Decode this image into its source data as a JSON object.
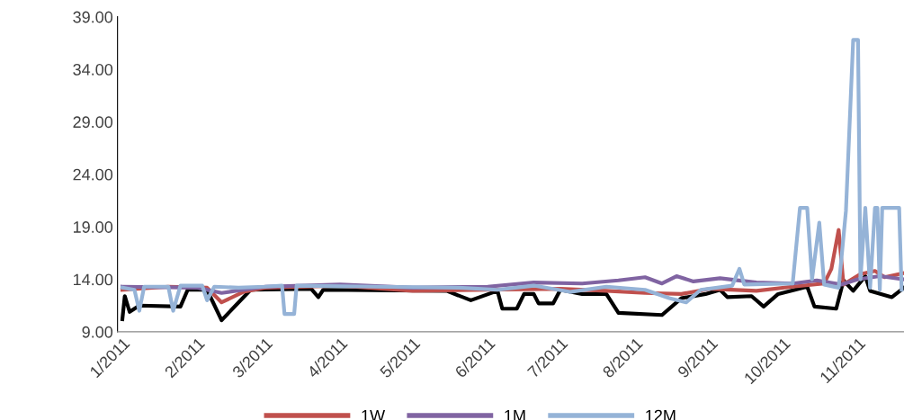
{
  "chart_data": {
    "type": "line",
    "xlim": [
      "2010-12-30",
      "2011-11-20"
    ],
    "xticks": [
      {
        "value": "2011-01-01",
        "label": "1/2011"
      },
      {
        "value": "2011-02-01",
        "label": "2/2011"
      },
      {
        "value": "2011-03-01",
        "label": "3/2011"
      },
      {
        "value": "2011-04-01",
        "label": "4/2011"
      },
      {
        "value": "2011-05-01",
        "label": "5/2011"
      },
      {
        "value": "2011-06-01",
        "label": "6/2011"
      },
      {
        "value": "2011-07-01",
        "label": "7/2011"
      },
      {
        "value": "2011-08-01",
        "label": "8/2011"
      },
      {
        "value": "2011-09-01",
        "label": "9/2011"
      },
      {
        "value": "2011-10-01",
        "label": "10/2011"
      },
      {
        "value": "2011-11-01",
        "label": "11/2011"
      }
    ],
    "ylim": [
      9,
      39
    ],
    "yticks": [
      {
        "value": 9,
        "label": "9.00"
      },
      {
        "value": 14,
        "label": "14.00"
      },
      {
        "value": 19,
        "label": "19.00"
      },
      {
        "value": 24,
        "label": "24.00"
      },
      {
        "value": 29,
        "label": "29.00"
      },
      {
        "value": 34,
        "label": "34.00"
      },
      {
        "value": 39,
        "label": "39.00"
      }
    ],
    "grid": false,
    "legend": "bottom",
    "marker": "none",
    "line_style": "solid",
    "series": [
      {
        "color": "#000000",
        "x": [
          "2011-01-01",
          "2011-01-02",
          "2011-01-04",
          "2011-01-08",
          "2011-01-25",
          "2011-01-28",
          "2011-02-05",
          "2011-02-11",
          "2011-02-23",
          "2011-03-20",
          "2011-03-23",
          "2011-03-25",
          "2011-05-15",
          "2011-05-25",
          "2011-06-05",
          "2011-06-07",
          "2011-06-13",
          "2011-06-16",
          "2011-06-20",
          "2011-06-22",
          "2011-06-28",
          "2011-07-01",
          "2011-07-10",
          "2011-07-20",
          "2011-07-25",
          "2011-08-12",
          "2011-08-20",
          "2011-08-30",
          "2011-09-05",
          "2011-09-08",
          "2011-09-18",
          "2011-09-23",
          "2011-09-29",
          "2011-10-11",
          "2011-10-14",
          "2011-10-23",
          "2011-10-26",
          "2011-10-30",
          "2011-11-04",
          "2011-11-06",
          "2011-11-15",
          "2011-11-20"
        ],
        "values": [
          10.2,
          12.4,
          10.9,
          11.5,
          11.4,
          13.0,
          13.0,
          10.1,
          13.0,
          13.1,
          12.3,
          13.0,
          12.9,
          12.0,
          12.9,
          11.2,
          11.2,
          12.6,
          12.6,
          11.7,
          11.7,
          13.0,
          12.6,
          12.6,
          10.8,
          10.6,
          12.2,
          12.6,
          13.0,
          12.3,
          12.4,
          11.4,
          12.6,
          13.3,
          11.4,
          11.2,
          13.9,
          12.9,
          14.3,
          12.9,
          12.3,
          13.2
        ]
      },
      {
        "name": "1W",
        "color": "#c0504d",
        "x": [
          "2011-01-01",
          "2011-01-20",
          "2011-02-05",
          "2011-02-11",
          "2011-02-20",
          "2011-03-01",
          "2011-04-01",
          "2011-05-01",
          "2011-06-01",
          "2011-07-01",
          "2011-07-20",
          "2011-08-05",
          "2011-08-20",
          "2011-09-01",
          "2011-09-20",
          "2011-10-05",
          "2011-10-18",
          "2011-10-21",
          "2011-10-24",
          "2011-10-26",
          "2011-11-02",
          "2011-11-08",
          "2011-11-12",
          "2011-11-20"
        ],
        "values": [
          13.0,
          13.3,
          13.2,
          11.8,
          12.8,
          13.2,
          13.4,
          12.9,
          13.0,
          13.1,
          12.9,
          12.7,
          12.6,
          13.1,
          12.9,
          13.3,
          13.6,
          15.0,
          18.7,
          13.5,
          14.5,
          14.8,
          14.2,
          14.6
        ]
      },
      {
        "name": "1M",
        "color": "#8064a2",
        "x": [
          "2011-01-01",
          "2011-02-01",
          "2011-02-11",
          "2011-03-01",
          "2011-04-01",
          "2011-05-01",
          "2011-06-01",
          "2011-06-20",
          "2011-07-10",
          "2011-07-25",
          "2011-08-05",
          "2011-08-12",
          "2011-08-18",
          "2011-08-25",
          "2011-09-05",
          "2011-09-20",
          "2011-10-05",
          "2011-10-15",
          "2011-10-25",
          "2011-11-01",
          "2011-11-10",
          "2011-11-20"
        ],
        "values": [
          13.3,
          13.2,
          12.7,
          13.3,
          13.5,
          13.2,
          13.3,
          13.7,
          13.6,
          13.9,
          14.2,
          13.6,
          14.3,
          13.8,
          14.1,
          13.7,
          13.6,
          13.9,
          13.5,
          14.0,
          14.3,
          14.0
        ]
      },
      {
        "name": "12M",
        "color": "#95b3d7",
        "x": [
          "2011-01-01",
          "2011-01-06",
          "2011-01-08",
          "2011-01-10",
          "2011-01-20",
          "2011-01-22",
          "2011-01-25",
          "2011-02-03",
          "2011-02-05",
          "2011-02-08",
          "2011-02-18",
          "2011-03-01",
          "2011-03-08",
          "2011-03-09",
          "2011-03-13",
          "2011-03-14",
          "2011-04-15",
          "2011-05-20",
          "2011-06-05",
          "2011-06-20",
          "2011-07-05",
          "2011-07-20",
          "2011-08-05",
          "2011-08-15",
          "2011-08-22",
          "2011-08-28",
          "2011-09-10",
          "2011-09-13",
          "2011-09-15",
          "2011-10-05",
          "2011-10-08",
          "2011-10-11",
          "2011-10-13",
          "2011-10-16",
          "2011-10-18",
          "2011-10-24",
          "2011-10-27",
          "2011-10-30",
          "2011-11-01",
          "2011-11-02",
          "2011-11-04",
          "2011-11-06",
          "2011-11-08",
          "2011-11-09",
          "2011-11-10",
          "2011-11-11",
          "2011-11-18",
          "2011-11-19"
        ],
        "values": [
          13.2,
          13.0,
          11.0,
          13.3,
          13.3,
          11.0,
          13.4,
          13.4,
          12.0,
          13.3,
          13.2,
          13.3,
          13.4,
          10.7,
          10.7,
          13.4,
          13.3,
          13.2,
          13.0,
          13.4,
          12.8,
          13.3,
          13.0,
          12.2,
          11.8,
          13.0,
          13.4,
          15.0,
          13.5,
          13.6,
          20.8,
          20.8,
          14.0,
          19.4,
          13.5,
          13.2,
          20.5,
          36.8,
          36.8,
          14.0,
          20.8,
          13.2,
          20.8,
          20.8,
          13.0,
          20.8,
          20.8,
          13.0
        ]
      }
    ]
  }
}
